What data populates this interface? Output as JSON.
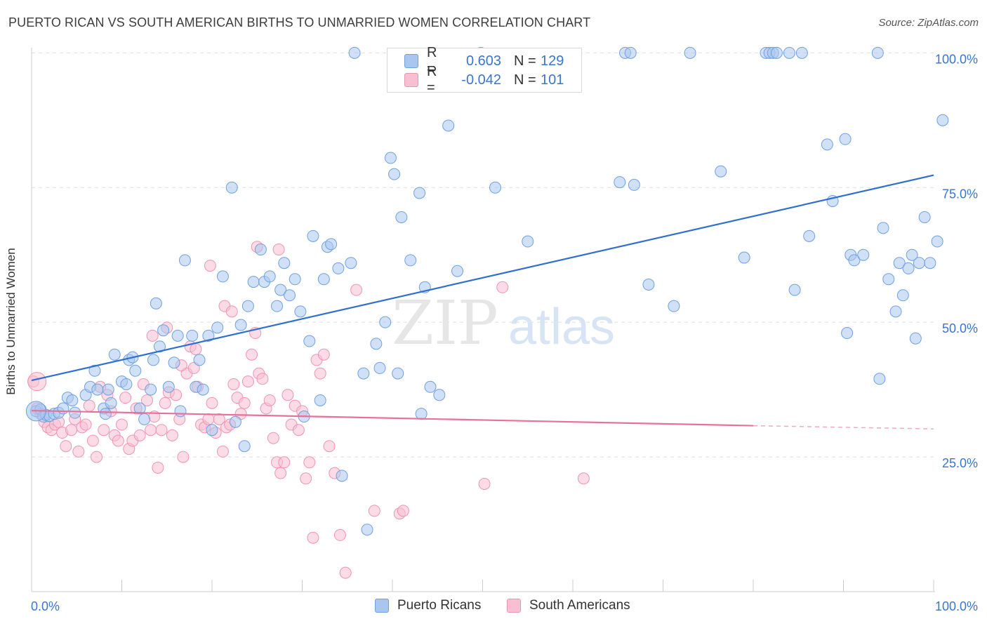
{
  "header": {
    "title": "PUERTO RICAN VS SOUTH AMERICAN BIRTHS TO UNMARRIED WOMEN CORRELATION CHART",
    "source": "Source: ZipAtlas.com"
  },
  "watermark": {
    "zip": "ZIP",
    "atlas": "atlas"
  },
  "legend": {
    "rows": [
      {
        "r_label": "R =",
        "r_value": "0.603",
        "n_label": "N =",
        "n_value": "129",
        "color": "#6fa0e0"
      },
      {
        "r_label": "R =",
        "r_value": "-0.042",
        "n_label": "N =",
        "n_value": "101",
        "color": "#ef93b2"
      }
    ]
  },
  "bottom_legend": {
    "items": [
      "Puerto Ricans",
      "South Americans"
    ]
  },
  "chart_data": {
    "type": "scatter",
    "title": "PUERTO RICAN VS SOUTH AMERICAN BIRTHS TO UNMARRIED WOMEN CORRELATION CHART",
    "xlabel": "",
    "ylabel": "Births to Unmarried Women",
    "xlim": [
      0,
      100
    ],
    "ylim": [
      0,
      102
    ],
    "x_tick_labels": [
      "0.0%",
      "100.0%"
    ],
    "y_tick_labels": [
      "25.0%",
      "50.0%",
      "75.0%",
      "100.0%"
    ],
    "y_ticks": [
      25,
      50,
      75,
      100
    ],
    "grid": "horizontal dashed",
    "legend_position": "top-center",
    "colors": {
      "blue_fill": "#a9c6ef",
      "blue_stroke": "#6fa0e0",
      "blue_line": "#2f6fcf",
      "pink_fill": "#f7c0d2",
      "pink_stroke": "#ef93b2",
      "pink_line": "#e8709a",
      "tick_label": "#3a75d0"
    },
    "series": [
      {
        "name": "Puerto Ricans",
        "trend": {
          "x0": 0,
          "y0": 39.2,
          "x1": 100,
          "y1": 77.3
        },
        "points": [
          [
            0.5,
            33.5
          ],
          [
            1,
            33.8
          ],
          [
            1.3,
            32.5
          ],
          [
            1.6,
            32.8
          ],
          [
            2,
            32.6
          ],
          [
            2.5,
            33
          ],
          [
            3,
            33.2
          ],
          [
            3.5,
            34
          ],
          [
            4,
            36
          ],
          [
            4.5,
            35.5
          ],
          [
            4.8,
            33.2
          ],
          [
            6,
            36.5
          ],
          [
            6.5,
            38
          ],
          [
            7,
            41
          ],
          [
            7.3,
            37.5
          ],
          [
            8,
            34
          ],
          [
            8.2,
            33
          ],
          [
            8.5,
            37.5
          ],
          [
            8.8,
            35
          ],
          [
            9.2,
            44
          ],
          [
            10,
            39
          ],
          [
            10.5,
            38.5
          ],
          [
            10.8,
            43
          ],
          [
            11.2,
            43.5
          ],
          [
            11.5,
            41
          ],
          [
            12,
            34
          ],
          [
            12.5,
            32
          ],
          [
            13.2,
            37.5
          ],
          [
            13.5,
            43
          ],
          [
            13.8,
            53.5
          ],
          [
            14.2,
            45.5
          ],
          [
            14.6,
            48.5
          ],
          [
            15.2,
            38
          ],
          [
            15.8,
            42.5
          ],
          [
            16.2,
            47.5
          ],
          [
            16.5,
            33.5
          ],
          [
            17,
            61.5
          ],
          [
            17.8,
            47.5
          ],
          [
            18.2,
            38
          ],
          [
            18.6,
            43
          ],
          [
            19,
            37.5
          ],
          [
            19.6,
            47.5
          ],
          [
            20,
            30
          ],
          [
            20.6,
            49
          ],
          [
            21.2,
            58.5
          ],
          [
            22.2,
            75
          ],
          [
            22.6,
            31.5
          ],
          [
            23.2,
            49.5
          ],
          [
            23.6,
            27
          ],
          [
            24,
            53
          ],
          [
            24.6,
            57.5
          ],
          [
            25.4,
            63.5
          ],
          [
            25.8,
            57.5
          ],
          [
            26.4,
            58.5
          ],
          [
            27.2,
            53
          ],
          [
            27.6,
            56
          ],
          [
            28,
            61
          ],
          [
            28.6,
            55
          ],
          [
            29.2,
            58
          ],
          [
            29.8,
            52
          ],
          [
            30.2,
            32.5
          ],
          [
            30.8,
            46.5
          ],
          [
            31.2,
            66
          ],
          [
            32,
            35.5
          ],
          [
            32.4,
            58
          ],
          [
            32.8,
            64
          ],
          [
            33.2,
            64.5
          ],
          [
            34,
            60
          ],
          [
            34.4,
            21.5
          ],
          [
            35.4,
            61
          ],
          [
            35.8,
            100
          ],
          [
            36.8,
            40.5
          ],
          [
            37.2,
            11.5
          ],
          [
            38.2,
            46
          ],
          [
            38.6,
            41.5
          ],
          [
            39.2,
            50
          ],
          [
            39.8,
            80.5
          ],
          [
            40.2,
            77.5
          ],
          [
            40.6,
            40.5
          ],
          [
            41,
            69.5
          ],
          [
            42,
            61.5
          ],
          [
            43,
            74
          ],
          [
            43.2,
            33
          ],
          [
            43.6,
            56.5
          ],
          [
            44.2,
            38
          ],
          [
            45.2,
            36.5
          ],
          [
            46.2,
            86.5
          ],
          [
            47.2,
            59.5
          ],
          [
            49.8,
            100
          ],
          [
            51.4,
            75
          ],
          [
            55,
            65
          ],
          [
            65.2,
            76
          ],
          [
            65.8,
            100
          ],
          [
            66.4,
            100
          ],
          [
            66.8,
            75.5
          ],
          [
            68.4,
            57
          ],
          [
            71.2,
            53
          ],
          [
            73,
            100
          ],
          [
            76.4,
            78
          ],
          [
            79,
            62
          ],
          [
            81.4,
            100
          ],
          [
            81.8,
            100
          ],
          [
            82.2,
            100
          ],
          [
            82.6,
            100
          ],
          [
            84,
            100
          ],
          [
            84.6,
            56
          ],
          [
            85.4,
            100
          ],
          [
            86.2,
            66
          ],
          [
            88.2,
            83
          ],
          [
            88.8,
            72.5
          ],
          [
            90.2,
            84
          ],
          [
            90.4,
            48
          ],
          [
            90.8,
            62.5
          ],
          [
            91.2,
            61.5
          ],
          [
            92.2,
            62.5
          ],
          [
            93.8,
            100
          ],
          [
            94,
            39.5
          ],
          [
            94.4,
            67.5
          ],
          [
            95,
            58
          ],
          [
            95.8,
            52
          ],
          [
            96.2,
            61
          ],
          [
            96.6,
            55
          ],
          [
            97.2,
            60
          ],
          [
            97.6,
            62.5
          ],
          [
            98,
            47
          ],
          [
            98.4,
            61
          ],
          [
            99,
            69.5
          ],
          [
            99.6,
            61
          ],
          [
            100.4,
            65
          ],
          [
            101,
            87.5
          ]
        ]
      },
      {
        "name": "South Americans",
        "trend": {
          "x0": 0,
          "y0": 33.6,
          "x1": 80,
          "y1": 30.8,
          "dash_to": 100,
          "dash_y": 30.2
        },
        "points": [
          [
            0.2,
            39
          ],
          [
            0.6,
            34
          ],
          [
            1,
            33
          ],
          [
            1.4,
            31.5
          ],
          [
            1.8,
            30.5
          ],
          [
            2.2,
            30
          ],
          [
            2.6,
            31
          ],
          [
            3,
            31.5
          ],
          [
            3.4,
            29.5
          ],
          [
            3.8,
            27
          ],
          [
            4.4,
            30
          ],
          [
            4.8,
            32
          ],
          [
            5.2,
            26
          ],
          [
            5.6,
            30.5
          ],
          [
            6,
            31
          ],
          [
            6.4,
            34.5
          ],
          [
            6.8,
            28
          ],
          [
            7.2,
            25
          ],
          [
            7.6,
            38
          ],
          [
            8,
            30
          ],
          [
            8.4,
            36.5
          ],
          [
            8.8,
            33.5
          ],
          [
            9.2,
            29
          ],
          [
            9.6,
            28
          ],
          [
            10,
            31
          ],
          [
            10.4,
            36
          ],
          [
            10.8,
            26.5
          ],
          [
            11.2,
            28
          ],
          [
            11.6,
            34
          ],
          [
            12,
            29
          ],
          [
            12.4,
            38.5
          ],
          [
            12.8,
            35.5
          ],
          [
            13.2,
            30
          ],
          [
            13.6,
            32.5
          ],
          [
            14,
            23
          ],
          [
            14.4,
            30
          ],
          [
            14.8,
            35
          ],
          [
            15.2,
            37
          ],
          [
            15.6,
            29
          ],
          [
            16,
            36.5
          ],
          [
            16.4,
            32
          ],
          [
            16.8,
            25
          ],
          [
            17.2,
            40.5
          ],
          [
            17.6,
            45.5
          ],
          [
            18,
            41.5
          ],
          [
            18.4,
            38
          ],
          [
            18.8,
            31
          ],
          [
            19.2,
            30.5
          ],
          [
            19.6,
            32
          ],
          [
            20,
            35
          ],
          [
            20.4,
            29.5
          ],
          [
            20.8,
            32
          ],
          [
            21.2,
            26
          ],
          [
            21.6,
            30.5
          ],
          [
            22,
            31
          ],
          [
            22.4,
            38.5
          ],
          [
            22.8,
            36
          ],
          [
            23.2,
            33
          ],
          [
            23.6,
            35
          ],
          [
            24,
            39
          ],
          [
            24.4,
            44
          ],
          [
            24.8,
            48
          ],
          [
            25.2,
            40.5
          ],
          [
            25.6,
            39.5
          ],
          [
            26,
            34
          ],
          [
            26.4,
            35.5
          ],
          [
            26.8,
            28.5
          ],
          [
            27.2,
            24
          ],
          [
            27.6,
            22
          ],
          [
            28,
            24
          ],
          [
            28.4,
            36.5
          ],
          [
            28.8,
            31
          ],
          [
            29.2,
            34.5
          ],
          [
            29.6,
            30
          ],
          [
            30,
            33.5
          ],
          [
            30.4,
            21
          ],
          [
            30.8,
            24
          ],
          [
            31.2,
            10
          ],
          [
            31.6,
            43
          ],
          [
            32,
            40.5
          ],
          [
            32.4,
            44
          ],
          [
            33,
            27
          ],
          [
            33.6,
            22
          ],
          [
            34.2,
            10.5
          ],
          [
            34.8,
            3.5
          ],
          [
            36,
            56
          ],
          [
            38,
            15
          ],
          [
            40.8,
            14.5
          ],
          [
            41.2,
            15
          ],
          [
            50.2,
            20
          ],
          [
            52.2,
            56.5
          ],
          [
            61.2,
            21
          ],
          [
            13.4,
            47.5
          ],
          [
            15,
            49
          ],
          [
            16.6,
            42
          ],
          [
            18.2,
            45
          ],
          [
            19.8,
            60.5
          ],
          [
            21.4,
            53
          ],
          [
            22.2,
            52
          ],
          [
            25,
            64
          ],
          [
            27.4,
            63.5
          ]
        ]
      }
    ]
  }
}
